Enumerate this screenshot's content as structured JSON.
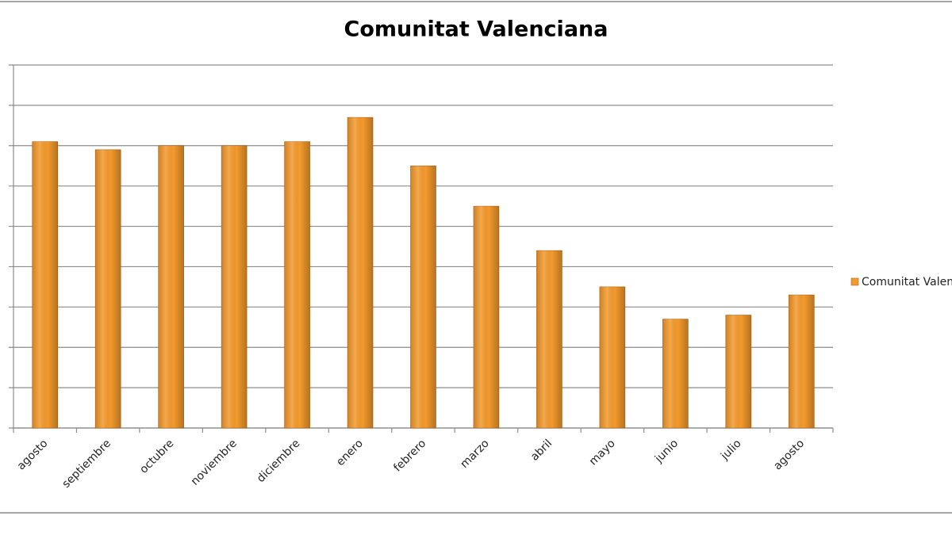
{
  "chart_data": {
    "type": "bar",
    "title": "Comunitat Valenciana",
    "categories": [
      "agosto",
      "septiembre",
      "octubre",
      "noviembre",
      "diciembre",
      "enero",
      "febrero",
      "marzo",
      "abril",
      "mayo",
      "junio",
      "julio",
      "agosto"
    ],
    "series": [
      {
        "name": "Comunitat Valenciana",
        "color": "#f39a2c",
        "values": [
          7.1,
          6.9,
          7.0,
          7.0,
          7.1,
          7.7,
          6.5,
          5.5,
          4.4,
          3.5,
          2.7,
          2.8,
          3.3
        ]
      }
    ],
    "ylim": [
      0,
      9
    ],
    "yticks": [
      0,
      1,
      2,
      3,
      4,
      5,
      6,
      7,
      8,
      9
    ],
    "grid": true,
    "legend": "right"
  }
}
